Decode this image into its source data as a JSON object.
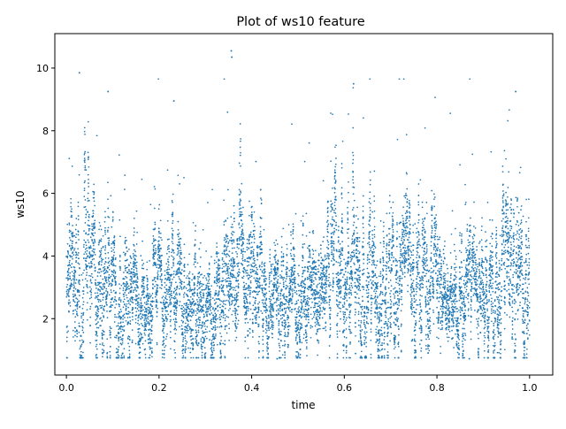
{
  "chart_data": {
    "type": "scatter",
    "title": "Plot of ws10 feature",
    "xlabel": "time",
    "ylabel": "ws10",
    "xlim": [
      -0.025,
      1.05
    ],
    "ylim": [
      0.2,
      11.1
    ],
    "x_ticks": [
      0.0,
      0.2,
      0.4,
      0.6,
      0.8,
      1.0
    ],
    "x_tick_labels": [
      "0.0",
      "0.2",
      "0.4",
      "0.6",
      "0.8",
      "1.0"
    ],
    "y_ticks": [
      2,
      4,
      6,
      8,
      10
    ],
    "y_tick_labels": [
      "2",
      "4",
      "6",
      "8",
      "10"
    ],
    "grid": false,
    "legend": "none",
    "marker_color": "#1f77b4",
    "point_count": 8760,
    "x_range": [
      0.0,
      1.0
    ],
    "value_range": [
      0.7,
      10.55
    ],
    "segments": [
      {
        "x": [
          0.0,
          0.03
        ],
        "mean": 3.8,
        "spread": 1.6
      },
      {
        "x": [
          0.03,
          0.06
        ],
        "mean": 3.2,
        "spread": 1.8
      },
      {
        "x": [
          0.06,
          0.12
        ],
        "mean": 2.8,
        "spread": 1.3
      },
      {
        "x": [
          0.12,
          0.2
        ],
        "mean": 2.5,
        "spread": 1.0
      },
      {
        "x": [
          0.2,
          0.26
        ],
        "mean": 3.0,
        "spread": 1.2
      },
      {
        "x": [
          0.26,
          0.34
        ],
        "mean": 2.6,
        "spread": 1.1
      },
      {
        "x": [
          0.34,
          0.42
        ],
        "mean": 3.6,
        "spread": 1.5
      },
      {
        "x": [
          0.42,
          0.5
        ],
        "mean": 2.4,
        "spread": 1.0
      },
      {
        "x": [
          0.5,
          0.58
        ],
        "mean": 2.9,
        "spread": 1.1
      },
      {
        "x": [
          0.58,
          0.64
        ],
        "mean": 3.3,
        "spread": 1.4
      },
      {
        "x": [
          0.64,
          0.72
        ],
        "mean": 3.1,
        "spread": 1.3
      },
      {
        "x": [
          0.72,
          0.8
        ],
        "mean": 3.0,
        "spread": 1.2
      },
      {
        "x": [
          0.8,
          0.88
        ],
        "mean": 2.6,
        "spread": 1.0
      },
      {
        "x": [
          0.88,
          0.94
        ],
        "mean": 2.7,
        "spread": 1.2
      },
      {
        "x": [
          0.94,
          1.0
        ],
        "mean": 3.0,
        "spread": 1.6
      }
    ],
    "notable_points": [
      {
        "x": 0.356,
        "y": 10.55
      },
      {
        "x": 0.357,
        "y": 10.35
      },
      {
        "x": 0.028,
        "y": 9.85
      },
      {
        "x": 0.09,
        "y": 9.25
      },
      {
        "x": 0.62,
        "y": 9.5
      },
      {
        "x": 0.97,
        "y": 9.25
      },
      {
        "x": 0.232,
        "y": 8.95
      },
      {
        "x": 0.645,
        "y": 0.75
      },
      {
        "x": 0.455,
        "y": 0.72
      },
      {
        "x": 0.87,
        "y": 0.72
      }
    ]
  }
}
